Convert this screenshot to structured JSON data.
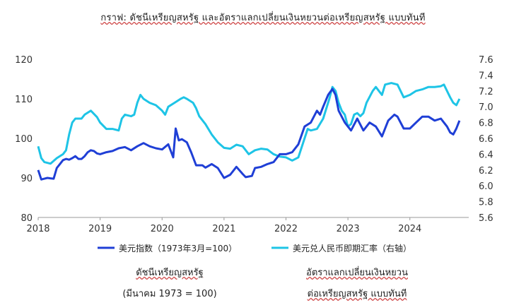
{
  "title": "กราฟ: ดัชนีเหรียญสหรัฐ และอัตราแลกเปลี่ยนเงินหยวนต่อเหรียญสหรัฐ แบบทันที",
  "captions": {
    "left_line1": "ดัชนีเหรียญสหรัฐ",
    "left_line2": "(มีนาคม 1973 = 100)",
    "right_line1": "อัตราแลกเปลี่ยนเงินหยวน",
    "right_line2": "ต่อเหรียญสหรัฐ แบบทันที"
  },
  "colors": {
    "usd_index": "#1f3fd6",
    "cny_rate": "#1ec4e6"
  },
  "chart_data": {
    "type": "line",
    "x_ticks": [
      "2018",
      "2019",
      "2020",
      "2021",
      "2022",
      "2023",
      "2024"
    ],
    "xlim": [
      2018.0,
      2024.95
    ],
    "y_left": {
      "ticks": [
        "80",
        "90",
        "100",
        "110",
        "120"
      ],
      "lim": [
        80,
        120
      ]
    },
    "y_right": {
      "ticks": [
        "5.6",
        "5.8",
        "6.0",
        "6.2",
        "6.4",
        "6.6",
        "6.8",
        "7.0",
        "7.2",
        "7.4",
        "7.6"
      ],
      "lim": [
        5.6,
        7.6
      ]
    },
    "legend_position": "bottom",
    "series": [
      {
        "name": "美元指数（1973年3月=100）",
        "axis": "left",
        "points": [
          [
            2018.0,
            92
          ],
          [
            2018.05,
            89.6
          ],
          [
            2018.1,
            89.8
          ],
          [
            2018.15,
            90
          ],
          [
            2018.2,
            89.9
          ],
          [
            2018.25,
            89.8
          ],
          [
            2018.3,
            92.5
          ],
          [
            2018.35,
            93.5
          ],
          [
            2018.4,
            94.5
          ],
          [
            2018.45,
            94.8
          ],
          [
            2018.5,
            94.6
          ],
          [
            2018.55,
            95
          ],
          [
            2018.6,
            95.5
          ],
          [
            2018.65,
            94.8
          ],
          [
            2018.7,
            94.8
          ],
          [
            2018.75,
            95.5
          ],
          [
            2018.8,
            96.5
          ],
          [
            2018.85,
            97
          ],
          [
            2018.9,
            96.8
          ],
          [
            2018.95,
            96.2
          ],
          [
            2019.0,
            96
          ],
          [
            2019.1,
            96.5
          ],
          [
            2019.2,
            96.8
          ],
          [
            2019.3,
            97.5
          ],
          [
            2019.4,
            97.8
          ],
          [
            2019.5,
            97
          ],
          [
            2019.6,
            98
          ],
          [
            2019.7,
            98.8
          ],
          [
            2019.8,
            98
          ],
          [
            2019.9,
            97.5
          ],
          [
            2020.0,
            97.2
          ],
          [
            2020.1,
            98.5
          ],
          [
            2020.18,
            95.2
          ],
          [
            2020.22,
            102.5
          ],
          [
            2020.27,
            99.5
          ],
          [
            2020.32,
            99.8
          ],
          [
            2020.4,
            99
          ],
          [
            2020.47,
            96.5
          ],
          [
            2020.55,
            93.2
          ],
          [
            2020.65,
            93.2
          ],
          [
            2020.7,
            92.6
          ],
          [
            2020.8,
            93.5
          ],
          [
            2020.9,
            92.5
          ],
          [
            2021.0,
            90
          ],
          [
            2021.1,
            90.8
          ],
          [
            2021.2,
            92.8
          ],
          [
            2021.3,
            91
          ],
          [
            2021.35,
            90.2
          ],
          [
            2021.45,
            90.5
          ],
          [
            2021.5,
            92.5
          ],
          [
            2021.6,
            92.8
          ],
          [
            2021.7,
            93.5
          ],
          [
            2021.8,
            94
          ],
          [
            2021.9,
            96
          ],
          [
            2022.0,
            96
          ],
          [
            2022.1,
            96.5
          ],
          [
            2022.2,
            98.5
          ],
          [
            2022.3,
            103
          ],
          [
            2022.4,
            104
          ],
          [
            2022.5,
            107
          ],
          [
            2022.55,
            106
          ],
          [
            2022.6,
            108
          ],
          [
            2022.68,
            111
          ],
          [
            2022.75,
            112.5
          ],
          [
            2022.8,
            111
          ],
          [
            2022.85,
            107
          ],
          [
            2022.95,
            104
          ],
          [
            2023.05,
            102
          ],
          [
            2023.15,
            105
          ],
          [
            2023.25,
            102
          ],
          [
            2023.35,
            104
          ],
          [
            2023.45,
            103
          ],
          [
            2023.55,
            100.5
          ],
          [
            2023.65,
            104.5
          ],
          [
            2023.75,
            106
          ],
          [
            2023.8,
            105.5
          ],
          [
            2023.9,
            102.5
          ],
          [
            2024.0,
            102.5
          ],
          [
            2024.1,
            104
          ],
          [
            2024.2,
            105.5
          ],
          [
            2024.3,
            105.5
          ],
          [
            2024.4,
            104.5
          ],
          [
            2024.5,
            105
          ],
          [
            2024.55,
            104
          ],
          [
            2024.6,
            103
          ],
          [
            2024.65,
            101.5
          ],
          [
            2024.7,
            101
          ],
          [
            2024.75,
            102.5
          ],
          [
            2024.8,
            104.5
          ]
        ]
      },
      {
        "name": "美元兑人民币即期汇率（右轴）",
        "axis": "right",
        "points": [
          [
            2018.0,
            6.5
          ],
          [
            2018.05,
            6.35
          ],
          [
            2018.1,
            6.3
          ],
          [
            2018.2,
            6.28
          ],
          [
            2018.3,
            6.35
          ],
          [
            2018.4,
            6.4
          ],
          [
            2018.45,
            6.45
          ],
          [
            2018.5,
            6.65
          ],
          [
            2018.55,
            6.8
          ],
          [
            2018.6,
            6.85
          ],
          [
            2018.7,
            6.85
          ],
          [
            2018.75,
            6.9
          ],
          [
            2018.85,
            6.95
          ],
          [
            2018.95,
            6.87
          ],
          [
            2019.0,
            6.8
          ],
          [
            2019.1,
            6.72
          ],
          [
            2019.2,
            6.72
          ],
          [
            2019.3,
            6.7
          ],
          [
            2019.35,
            6.85
          ],
          [
            2019.4,
            6.9
          ],
          [
            2019.5,
            6.88
          ],
          [
            2019.55,
            6.9
          ],
          [
            2019.6,
            7.05
          ],
          [
            2019.65,
            7.15
          ],
          [
            2019.7,
            7.1
          ],
          [
            2019.8,
            7.05
          ],
          [
            2019.9,
            7.02
          ],
          [
            2020.0,
            6.95
          ],
          [
            2020.05,
            6.9
          ],
          [
            2020.1,
            7.0
          ],
          [
            2020.2,
            7.05
          ],
          [
            2020.3,
            7.1
          ],
          [
            2020.35,
            7.12
          ],
          [
            2020.4,
            7.1
          ],
          [
            2020.5,
            7.05
          ],
          [
            2020.55,
            6.98
          ],
          [
            2020.6,
            6.88
          ],
          [
            2020.7,
            6.78
          ],
          [
            2020.8,
            6.65
          ],
          [
            2020.9,
            6.55
          ],
          [
            2021.0,
            6.48
          ],
          [
            2021.1,
            6.47
          ],
          [
            2021.2,
            6.52
          ],
          [
            2021.3,
            6.5
          ],
          [
            2021.4,
            6.4
          ],
          [
            2021.5,
            6.45
          ],
          [
            2021.6,
            6.47
          ],
          [
            2021.7,
            6.46
          ],
          [
            2021.8,
            6.4
          ],
          [
            2021.9,
            6.37
          ],
          [
            2022.0,
            6.36
          ],
          [
            2022.1,
            6.32
          ],
          [
            2022.2,
            6.36
          ],
          [
            2022.3,
            6.6
          ],
          [
            2022.35,
            6.72
          ],
          [
            2022.4,
            6.7
          ],
          [
            2022.5,
            6.72
          ],
          [
            2022.6,
            6.85
          ],
          [
            2022.7,
            7.1
          ],
          [
            2022.75,
            7.25
          ],
          [
            2022.8,
            7.2
          ],
          [
            2022.85,
            7.05
          ],
          [
            2022.9,
            6.95
          ],
          [
            2022.95,
            6.9
          ],
          [
            2023.0,
            6.75
          ],
          [
            2023.05,
            6.78
          ],
          [
            2023.1,
            6.9
          ],
          [
            2023.15,
            6.92
          ],
          [
            2023.2,
            6.88
          ],
          [
            2023.25,
            6.92
          ],
          [
            2023.3,
            7.05
          ],
          [
            2023.4,
            7.2
          ],
          [
            2023.45,
            7.25
          ],
          [
            2023.5,
            7.2
          ],
          [
            2023.55,
            7.15
          ],
          [
            2023.6,
            7.28
          ],
          [
            2023.7,
            7.3
          ],
          [
            2023.8,
            7.28
          ],
          [
            2023.9,
            7.12
          ],
          [
            2024.0,
            7.15
          ],
          [
            2024.1,
            7.2
          ],
          [
            2024.2,
            7.22
          ],
          [
            2024.3,
            7.25
          ],
          [
            2024.4,
            7.25
          ],
          [
            2024.5,
            7.26
          ],
          [
            2024.55,
            7.28
          ],
          [
            2024.6,
            7.2
          ],
          [
            2024.65,
            7.12
          ],
          [
            2024.7,
            7.05
          ],
          [
            2024.75,
            7.02
          ],
          [
            2024.8,
            7.1
          ]
        ]
      }
    ]
  }
}
